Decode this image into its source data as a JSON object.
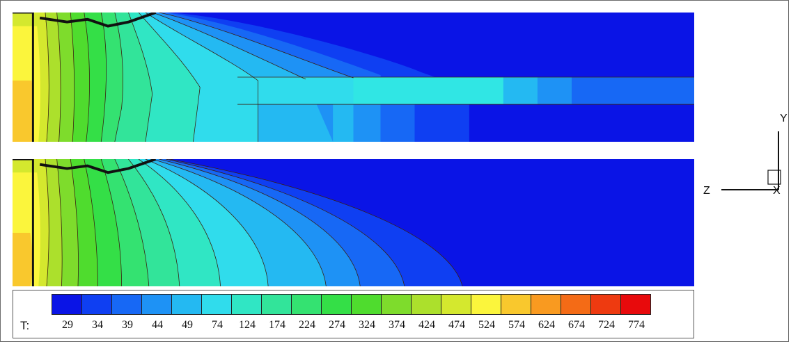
{
  "legend": {
    "variable": "T:",
    "levels": [
      "29",
      "34",
      "39",
      "44",
      "49",
      "74",
      "124",
      "174",
      "224",
      "274",
      "324",
      "374",
      "424",
      "474",
      "524",
      "574",
      "624",
      "674",
      "724",
      "774"
    ],
    "colors": [
      "#0a14e6",
      "#0f3ff2",
      "#1768f5",
      "#1e92f5",
      "#24b9f2",
      "#30dcec",
      "#30e6c4",
      "#32e49a",
      "#34e271",
      "#34df47",
      "#4fdc2e",
      "#7edc2c",
      "#ace02c",
      "#d4e82e",
      "#fbf53c",
      "#f9c82d",
      "#f99a20",
      "#f46b16",
      "#ee3a10",
      "#e80a0c"
    ]
  },
  "axes_triad": {
    "y_label": "Y",
    "z_label": "Z",
    "x_label": "X"
  },
  "plots": [
    {
      "name": "top-contour",
      "description_key": "with-insert"
    },
    {
      "name": "bottom-contour",
      "description_key": "without-insert"
    }
  ]
}
